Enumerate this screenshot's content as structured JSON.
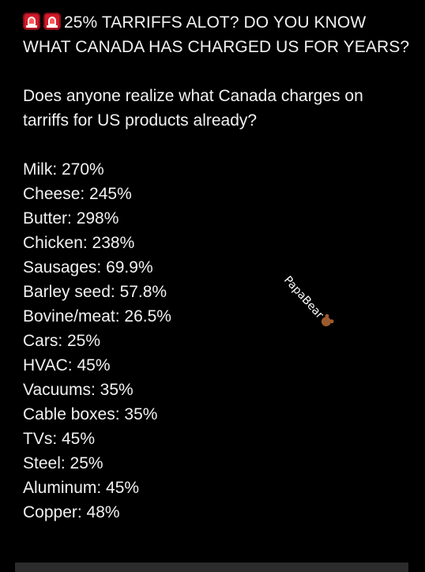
{
  "post": {
    "headline": "25% TARRIFFS ALOT? DO YOU KNOW WHAT CANADA HAS CHARGED US FOR YEARS?",
    "headline_icons": [
      "police-siren-icon",
      "police-siren-icon"
    ],
    "intro": "Does anyone realize what Canada charges on tarriffs for US products already?",
    "rates": [
      "Milk: 270%",
      "Cheese: 245%",
      "Butter: 298%",
      "Chicken: 238%",
      "Sausages: 69.9%",
      "Barley seed: 57.8%",
      "Bovine/meat: 26.5%",
      "Cars: 25%",
      "HVAC: 45%",
      "Vacuums: 35%",
      "Cable boxes: 35%",
      "TVs: 45%",
      "Steel: 25%",
      "Aluminum: 45%",
      "Copper: 48%"
    ]
  },
  "watermark": {
    "text": "PapaBear",
    "icon": "bear-icon"
  },
  "colors": {
    "background": "#000000",
    "text": "#f2f2f2",
    "siren": "#d11a2a"
  }
}
